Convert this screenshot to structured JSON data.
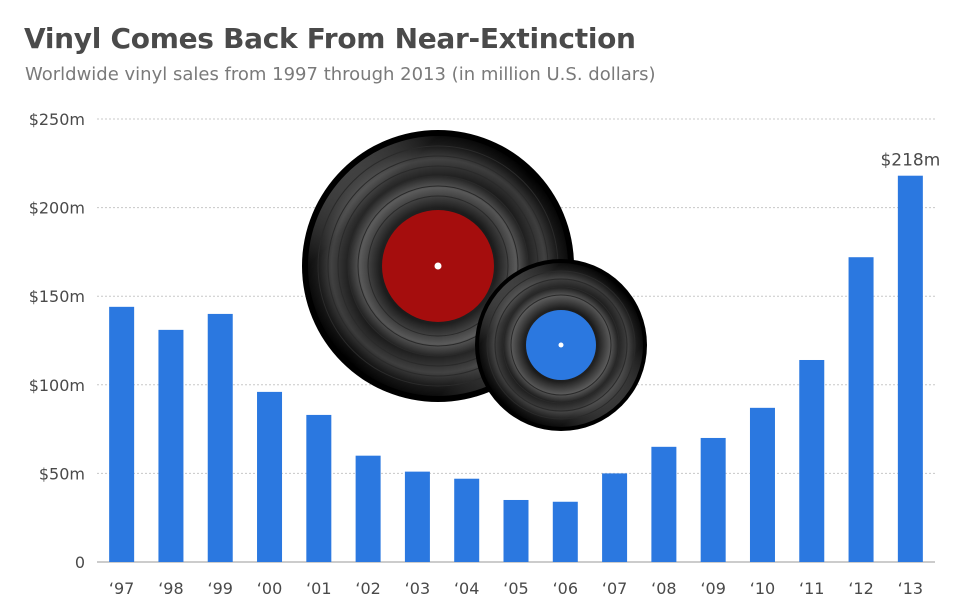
{
  "colors": {
    "bar": "#2b78e0",
    "grid": "#c8c8c8",
    "text": "#4a4a4a",
    "record_label_large": "#a50d0d",
    "record_label_small": "#2b78e0"
  },
  "illustration": [
    "vinyl-record-large-red-label",
    "vinyl-record-small-blue-label"
  ],
  "chart_data": {
    "type": "bar",
    "title": "Vinyl Comes Back From Near-Extinction",
    "subtitle": "Worldwide vinyl sales from 1997 through 2013 (in million U.S. dollars)",
    "categories": [
      "‘97",
      "‘98",
      "‘99",
      "‘00",
      "‘01",
      "‘02",
      "‘03",
      "‘04",
      "‘05",
      "‘06",
      "‘07",
      "‘08",
      "‘09",
      "‘10",
      "‘11",
      "‘12",
      "‘13"
    ],
    "values": [
      144,
      131,
      140,
      96,
      83,
      60,
      51,
      47,
      35,
      34,
      50,
      65,
      70,
      87,
      114,
      172,
      218
    ],
    "ylim": [
      0,
      250
    ],
    "y_ticks": [
      0,
      50,
      100,
      150,
      200,
      250
    ],
    "y_tick_labels": [
      "0",
      "$50m",
      "$100m",
      "$150m",
      "$200m",
      "$250m"
    ],
    "grid": true,
    "annotations": [
      {
        "category": "‘13",
        "text": "$218m"
      }
    ],
    "xlabel": "",
    "ylabel": ""
  }
}
